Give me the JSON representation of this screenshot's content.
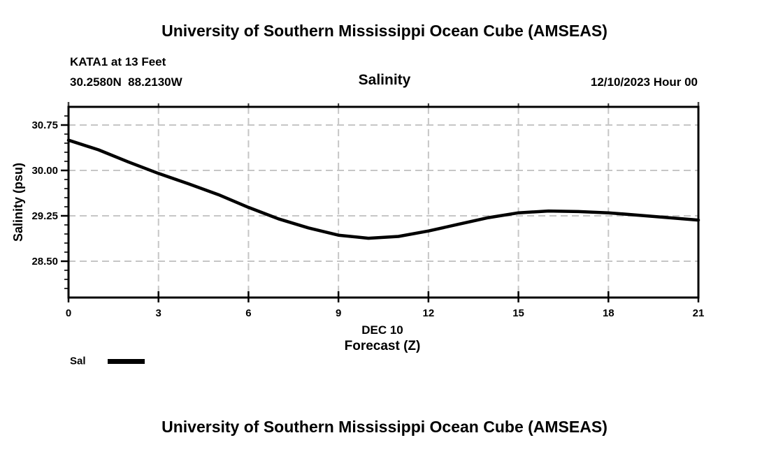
{
  "header": {
    "title": "University of Southern Mississippi Ocean Cube (AMSEAS)"
  },
  "subheader": {
    "station": "KATA1 at 13 Feet",
    "coordinates": "30.2580N  88.2130W",
    "plot_title": "Salinity",
    "datetime": "12/10/2023 Hour 00"
  },
  "legend": {
    "label": "Sal",
    "swatch_color": "#000000",
    "position": "bottom-left"
  },
  "footer": {
    "title": "University of Southern Mississippi Ocean Cube (AMSEAS)"
  },
  "chart_data": {
    "type": "line",
    "title": "Salinity",
    "xlabel_line1": "DEC 10",
    "xlabel_line2": "Forecast (Z)",
    "ylabel": "Salinity (psu)",
    "x": [
      0,
      1,
      2,
      3,
      4,
      5,
      6,
      7,
      8,
      9,
      10,
      11,
      12,
      13,
      14,
      15,
      16,
      17,
      18,
      19,
      20,
      21
    ],
    "series": [
      {
        "name": "Sal",
        "color": "#000000",
        "values": [
          30.5,
          30.34,
          30.14,
          29.95,
          29.78,
          29.6,
          29.39,
          29.2,
          29.05,
          28.93,
          28.88,
          28.91,
          29.0,
          29.11,
          29.22,
          29.3,
          29.33,
          29.32,
          29.3,
          29.26,
          29.22,
          29.18
        ]
      }
    ],
    "xlim": [
      0,
      21
    ],
    "ylim": [
      27.9,
      31.05
    ],
    "xticks": [
      0,
      3,
      6,
      9,
      12,
      15,
      18,
      21
    ],
    "xtick_labels": [
      "0",
      "3",
      "6",
      "9",
      "12",
      "15",
      "18",
      "21"
    ],
    "yticks": [
      30.75,
      30.0,
      29.25,
      28.5
    ],
    "ytick_labels": [
      "30.75",
      "30.00",
      "29.25",
      "28.50"
    ],
    "minor_ytick_step": 0.15,
    "grid": "dashed",
    "grid_color": "#c6c6c6",
    "frame_color": "#000000",
    "legend_position": "bottom-left"
  }
}
